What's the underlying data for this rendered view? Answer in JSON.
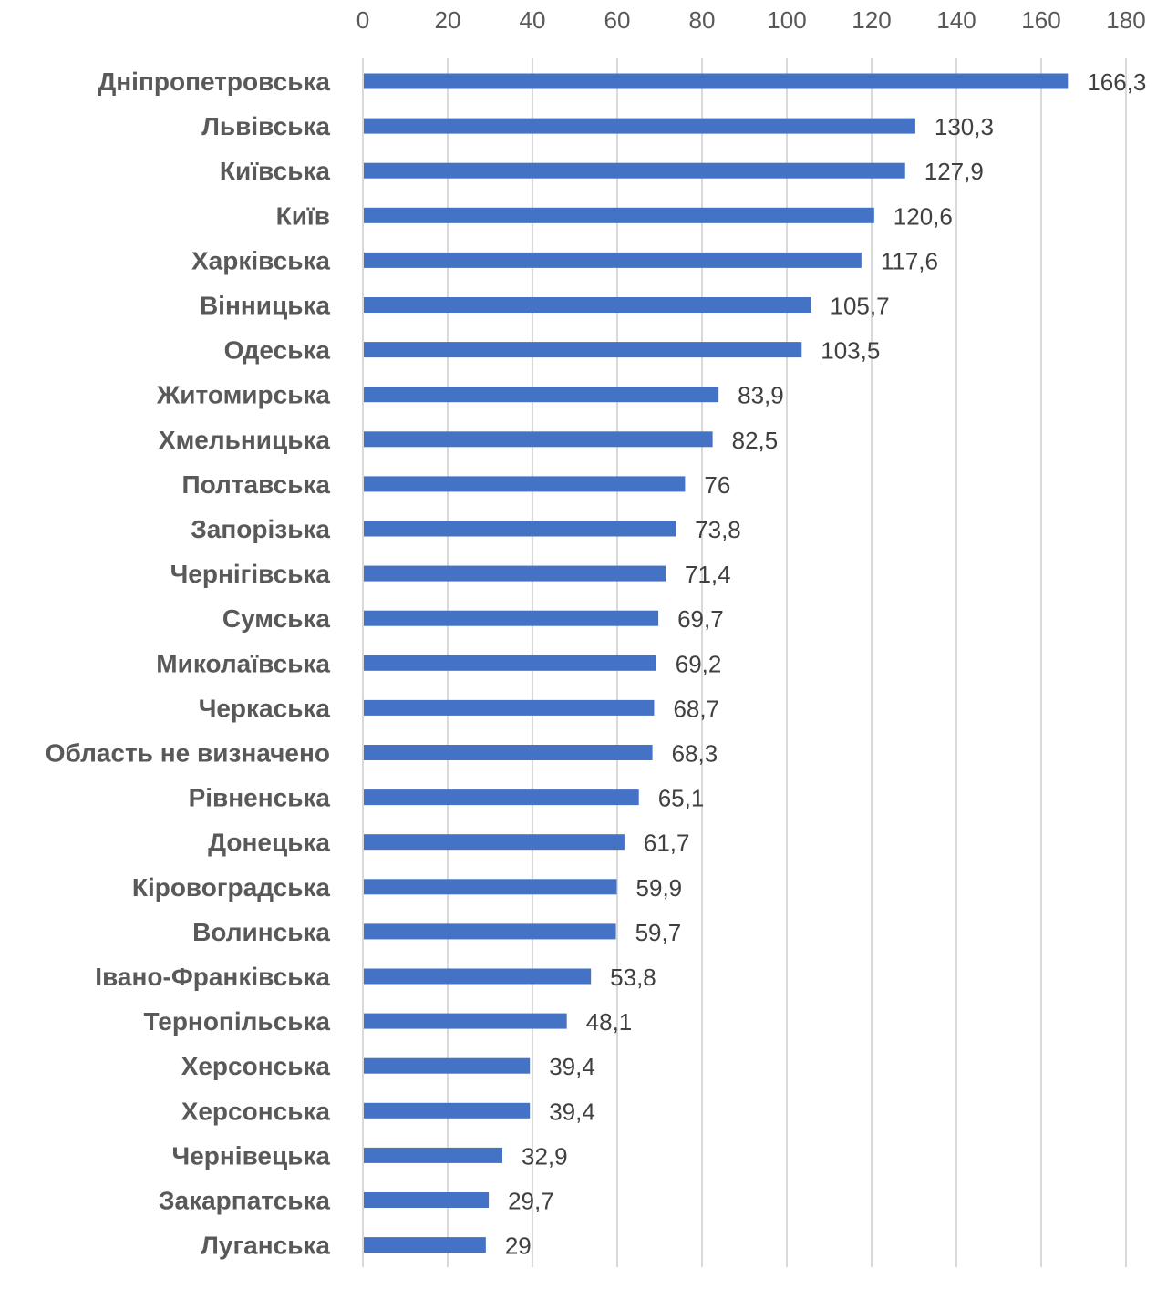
{
  "chart_data": {
    "type": "bar",
    "orientation": "horizontal",
    "title": "",
    "xlabel": "",
    "ylabel": "",
    "xlim": [
      0,
      180
    ],
    "x_ticks": [
      0,
      20,
      40,
      60,
      80,
      100,
      120,
      140,
      160,
      180
    ],
    "x_axis_position": "top",
    "grid": true,
    "legend": "none",
    "bar_color": "#4472C4",
    "categories": [
      "Дніпропетровська",
      "Львівська",
      "Київська",
      "Київ",
      "Харківська",
      "Вінницька",
      "Одеська",
      "Житомирська",
      "Хмельницька",
      "Полтавська",
      "Запорізька",
      "Чернігівська",
      "Сумська",
      "Миколаївська",
      "Черкаська",
      "Область не визначено",
      "Рівненська",
      "Донецька",
      "Кіровоградська",
      "Волинська",
      "Івано-Франківська",
      "Тернопільська",
      "Херсонська",
      "Херсонська",
      "Чернівецька",
      "Закарпатська",
      "Луганська"
    ],
    "values": [
      166.3,
      130.3,
      127.9,
      120.6,
      117.6,
      105.7,
      103.5,
      83.9,
      82.5,
      76,
      73.8,
      71.4,
      69.7,
      69.2,
      68.7,
      68.3,
      65.1,
      61.7,
      59.9,
      59.7,
      53.8,
      48.1,
      39.4,
      39.4,
      32.9,
      29.7,
      29
    ],
    "value_labels": [
      "166,3",
      "130,3",
      "127,9",
      "120,6",
      "117,6",
      "105,7",
      "103,5",
      "83,9",
      "82,5",
      "76",
      "73,8",
      "71,4",
      "69,7",
      "69,2",
      "68,7",
      "68,3",
      "65,1",
      "61,7",
      "59,9",
      "59,7",
      "53,8",
      "48,1",
      "39,4",
      "39,4",
      "32,9",
      "29,7",
      "29"
    ]
  }
}
